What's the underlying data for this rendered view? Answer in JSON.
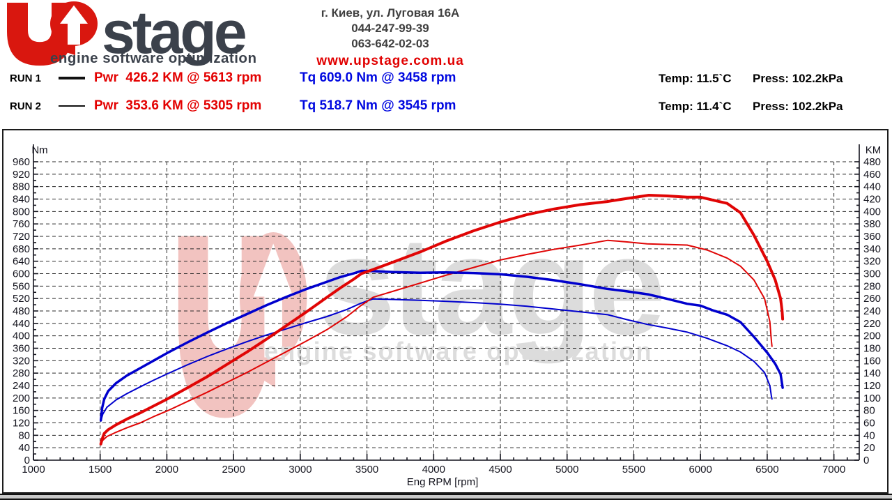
{
  "header": {
    "brand": "stage",
    "tagline": "engine software optimization",
    "contact": {
      "address": "г. Киев, ул. Луговая 16А",
      "phone1": "044-247-99-39",
      "phone2": "063-642-02-03",
      "website": "www.upstage.com.ua"
    }
  },
  "runs": [
    {
      "label": "RUN 1",
      "power": "Pwr  426.2 KM @ 5613 rpm",
      "torque": "Tq 609.0 Nm @ 3458 rpm",
      "temp": "Temp: 11.5`C",
      "press": "Press: 102.2kPa"
    },
    {
      "label": "RUN 2",
      "power": "Pwr  353.6 KM @ 5305 rpm",
      "torque": "Tq 518.7 Nm @ 3545 rpm",
      "temp": "Temp: 11.4`C",
      "press": "Press: 102.2kPa"
    }
  ],
  "colors": {
    "logo_red": "#d9170f",
    "text_charcoal": "#3b414b",
    "power_red": "#e00505",
    "torque_blue": "#0000cd",
    "grid": "#2a2a2a",
    "axis_text": "#14141e",
    "watermark_pink": "#f2c3c0",
    "watermark_gray": "#dcdcdc"
  },
  "chart_data": {
    "type": "line",
    "title": "",
    "xlabel": "Eng RPM [rpm]",
    "x_range": [
      1000,
      7190
    ],
    "x_major_step": 500,
    "x_minor_step": 100,
    "grid": "dashed",
    "left_axis": {
      "label": "Nm",
      "range": [
        0,
        960
      ],
      "major_step": 40,
      "minor_step": 20
    },
    "right_axis": {
      "label": "KM",
      "range": [
        0,
        480
      ],
      "major_step": 20,
      "minor_step": 10
    },
    "watermark": {
      "brand": "stage",
      "tagline": "engine software optimization"
    },
    "series": [
      {
        "name": "RUN 2 Torque (Nm)",
        "axis": "left",
        "color": "#0000cd",
        "width": 2,
        "points": [
          [
            1505,
            126
          ],
          [
            1520,
            148
          ],
          [
            1550,
            170
          ],
          [
            1620,
            194
          ],
          [
            1700,
            214
          ],
          [
            1800,
            236
          ],
          [
            1900,
            257
          ],
          [
            2000,
            277
          ],
          [
            2150,
            306
          ],
          [
            2300,
            333
          ],
          [
            2450,
            358
          ],
          [
            2600,
            381
          ],
          [
            2750,
            403
          ],
          [
            2900,
            423
          ],
          [
            3050,
            443
          ],
          [
            3200,
            462
          ],
          [
            3350,
            485
          ],
          [
            3450,
            504
          ],
          [
            3545,
            518.7
          ],
          [
            3700,
            517
          ],
          [
            3900,
            514
          ],
          [
            4100,
            511
          ],
          [
            4300,
            507
          ],
          [
            4500,
            502
          ],
          [
            4700,
            495
          ],
          [
            4900,
            486
          ],
          [
            5100,
            477
          ],
          [
            5305,
            468
          ],
          [
            5450,
            452
          ],
          [
            5600,
            437
          ],
          [
            5750,
            425
          ],
          [
            5900,
            412
          ],
          [
            6050,
            392
          ],
          [
            6200,
            368
          ],
          [
            6300,
            348
          ],
          [
            6400,
            318
          ],
          [
            6480,
            282
          ],
          [
            6520,
            240
          ],
          [
            6532,
            205
          ],
          [
            6536,
            197
          ]
        ]
      },
      {
        "name": "RUN 2 Power (KM)",
        "axis": "right",
        "color": "#e00505",
        "width": 2,
        "points": [
          [
            1505,
            27
          ],
          [
            1520,
            32
          ],
          [
            1550,
            38
          ],
          [
            1620,
            45
          ],
          [
            1700,
            52
          ],
          [
            1800,
            60
          ],
          [
            1900,
            70
          ],
          [
            2000,
            79
          ],
          [
            2150,
            94
          ],
          [
            2300,
            109
          ],
          [
            2450,
            125
          ],
          [
            2600,
            141
          ],
          [
            2750,
            158
          ],
          [
            2900,
            175
          ],
          [
            3050,
            192
          ],
          [
            3200,
            210
          ],
          [
            3350,
            231
          ],
          [
            3450,
            248
          ],
          [
            3545,
            262
          ],
          [
            3700,
            272
          ],
          [
            3900,
            285
          ],
          [
            4100,
            298
          ],
          [
            4300,
            310
          ],
          [
            4500,
            322
          ],
          [
            4700,
            331
          ],
          [
            4900,
            339
          ],
          [
            5100,
            346
          ],
          [
            5305,
            353.6
          ],
          [
            5450,
            351
          ],
          [
            5600,
            348
          ],
          [
            5750,
            347
          ],
          [
            5900,
            346
          ],
          [
            6050,
            338
          ],
          [
            6200,
            325
          ],
          [
            6300,
            312
          ],
          [
            6400,
            290
          ],
          [
            6480,
            260
          ],
          [
            6520,
            223
          ],
          [
            6532,
            191
          ],
          [
            6536,
            183
          ]
        ]
      },
      {
        "name": "RUN 1 Torque (Nm)",
        "axis": "left",
        "color": "#0000cd",
        "width": 3.5,
        "points": [
          [
            1505,
            128
          ],
          [
            1515,
            168
          ],
          [
            1530,
            196
          ],
          [
            1560,
            222
          ],
          [
            1620,
            248
          ],
          [
            1700,
            272
          ],
          [
            1800,
            296
          ],
          [
            1900,
            320
          ],
          [
            2000,
            344
          ],
          [
            2150,
            378
          ],
          [
            2300,
            410
          ],
          [
            2450,
            441
          ],
          [
            2600,
            470
          ],
          [
            2750,
            499
          ],
          [
            2900,
            526
          ],
          [
            3050,
            551
          ],
          [
            3200,
            574
          ],
          [
            3300,
            589
          ],
          [
            3400,
            601
          ],
          [
            3458,
            609
          ],
          [
            3550,
            608
          ],
          [
            3700,
            605
          ],
          [
            3900,
            603
          ],
          [
            4100,
            604
          ],
          [
            4300,
            602
          ],
          [
            4500,
            598
          ],
          [
            4700,
            590
          ],
          [
            4900,
            579
          ],
          [
            5100,
            566
          ],
          [
            5300,
            551
          ],
          [
            5450,
            543
          ],
          [
            5613,
            533
          ],
          [
            5750,
            519
          ],
          [
            5900,
            503
          ],
          [
            6000,
            497
          ],
          [
            6100,
            481
          ],
          [
            6200,
            468
          ],
          [
            6300,
            444
          ],
          [
            6400,
            397
          ],
          [
            6500,
            346
          ],
          [
            6560,
            310
          ],
          [
            6600,
            277
          ],
          [
            6612,
            245
          ],
          [
            6616,
            233
          ]
        ]
      },
      {
        "name": "RUN 1 Power (KM)",
        "axis": "right",
        "color": "#e00505",
        "width": 4,
        "points": [
          [
            1505,
            26
          ],
          [
            1515,
            34
          ],
          [
            1530,
            43
          ],
          [
            1560,
            49
          ],
          [
            1620,
            57
          ],
          [
            1700,
            66
          ],
          [
            1800,
            76
          ],
          [
            1900,
            87
          ],
          [
            2000,
            98
          ],
          [
            2150,
            116
          ],
          [
            2300,
            134
          ],
          [
            2450,
            154
          ],
          [
            2600,
            174
          ],
          [
            2750,
            195
          ],
          [
            2900,
            217
          ],
          [
            3050,
            239
          ],
          [
            3200,
            262
          ],
          [
            3300,
            277
          ],
          [
            3400,
            291
          ],
          [
            3458,
            300
          ],
          [
            3550,
            307
          ],
          [
            3700,
            319
          ],
          [
            3900,
            335
          ],
          [
            4100,
            353
          ],
          [
            4300,
            369
          ],
          [
            4500,
            383
          ],
          [
            4700,
            395
          ],
          [
            4900,
            404
          ],
          [
            5100,
            411
          ],
          [
            5300,
            416
          ],
          [
            5450,
            421
          ],
          [
            5613,
            426.2
          ],
          [
            5750,
            425
          ],
          [
            5900,
            423
          ],
          [
            6000,
            423
          ],
          [
            6100,
            418
          ],
          [
            6200,
            413
          ],
          [
            6300,
            398
          ],
          [
            6400,
            362
          ],
          [
            6500,
            320
          ],
          [
            6560,
            290
          ],
          [
            6600,
            260
          ],
          [
            6612,
            240
          ],
          [
            6616,
            227
          ]
        ]
      }
    ]
  }
}
